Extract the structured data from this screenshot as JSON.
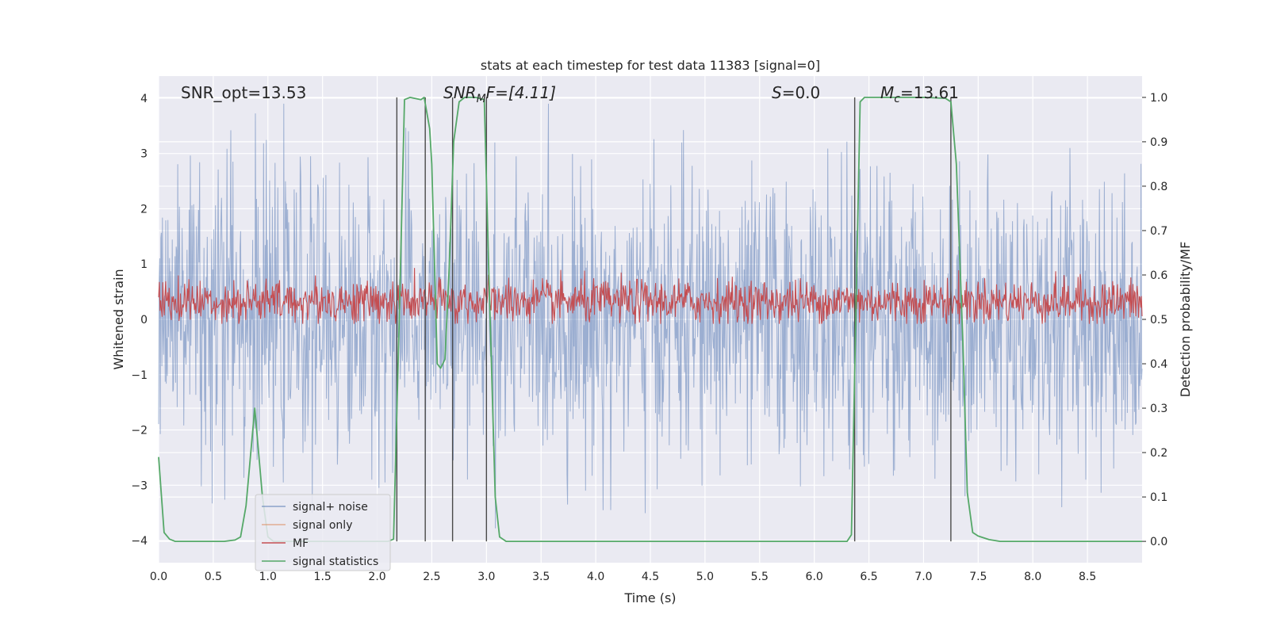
{
  "chart_data": {
    "type": "line",
    "title": "stats at each timestep for test data 11383 [signal=0]",
    "xlabel": "Time (s)",
    "ylabel_left": "Whitened strain",
    "ylabel_right": "Detection probability/MF",
    "xlim": [
      0.0,
      9.0
    ],
    "ylim_left": [
      -4.4,
      4.4
    ],
    "ylim_right": [
      -0.048,
      1.048
    ],
    "x_ticks": [
      "0.0",
      "0.5",
      "1.0",
      "1.5",
      "2.0",
      "2.5",
      "3.0",
      "3.5",
      "4.0",
      "4.5",
      "5.0",
      "5.5",
      "6.0",
      "6.5",
      "7.0",
      "7.5",
      "8.0",
      "8.5"
    ],
    "y_ticks_left": [
      "4",
      "3",
      "2",
      "1",
      "0",
      "−1",
      "−2",
      "−3",
      "−4"
    ],
    "y_ticks_right": [
      "1.0",
      "0.9",
      "0.8",
      "0.7",
      "0.6",
      "0.5",
      "0.4",
      "0.3",
      "0.2",
      "0.1",
      "0.0"
    ],
    "grid": true,
    "legend_position": "lower-left",
    "annotations": {
      "snr_opt": "SNR_opt=13.53",
      "snr_mf_sym": "SNR",
      "snr_mf_sub": "M",
      "snr_mf_rest": "F=[4.11]",
      "s_sym": "S",
      "s_rest": "=0.0",
      "mc_sym": "M",
      "mc_sub": "c",
      "mc_rest": "=13.61"
    },
    "vlines_x": [
      2.18,
      2.44,
      2.69,
      3.0,
      6.37,
      7.25
    ],
    "series": [
      {
        "name": "signal+ noise",
        "color": "#4c72b0",
        "alpha": 0.5,
        "axis": "left",
        "kind": "noise",
        "approx_range": [
          -3.9,
          3.9
        ]
      },
      {
        "name": "signal only",
        "color": "#dd8452",
        "axis": "left",
        "values": []
      },
      {
        "name": "MF",
        "color": "#c44e52",
        "axis": "right",
        "kind": "noise",
        "approx_range": [
          0.49,
          0.62
        ]
      },
      {
        "name": "signal statistics",
        "color": "#55a868",
        "axis": "right",
        "x": [
          0.0,
          0.05,
          0.1,
          0.15,
          0.2,
          0.4,
          0.6,
          0.7,
          0.75,
          0.8,
          0.88,
          0.95,
          1.0,
          1.05,
          1.2,
          1.5,
          2.0,
          2.1,
          2.15,
          2.2,
          2.25,
          2.3,
          2.4,
          2.43,
          2.48,
          2.5,
          2.55,
          2.58,
          2.62,
          2.66,
          2.7,
          2.75,
          2.8,
          2.9,
          2.98,
          3.02,
          3.08,
          3.12,
          3.18,
          3.5,
          4.5,
          5.5,
          6.3,
          6.34,
          6.38,
          6.42,
          6.46,
          6.6,
          7.0,
          7.2,
          7.25,
          7.3,
          7.36,
          7.4,
          7.45,
          7.5,
          7.6,
          7.7,
          8.0,
          8.5,
          9.0
        ],
        "values": [
          0.19,
          0.02,
          0.005,
          0.0,
          0.0,
          0.0,
          0.0,
          0.003,
          0.01,
          0.08,
          0.3,
          0.1,
          0.01,
          0.0,
          0.0,
          0.0,
          0.0,
          0.0,
          0.005,
          0.48,
          0.995,
          1.0,
          0.995,
          1.0,
          0.93,
          0.85,
          0.4,
          0.39,
          0.41,
          0.62,
          0.9,
          0.99,
          1.0,
          1.0,
          0.995,
          0.62,
          0.1,
          0.01,
          0.0,
          0.0,
          0.0,
          0.0,
          0.0,
          0.015,
          0.5,
          0.99,
          1.0,
          1.0,
          1.0,
          0.998,
          0.99,
          0.85,
          0.45,
          0.11,
          0.02,
          0.012,
          0.004,
          0.0,
          0.0,
          0.0,
          0.0
        ]
      }
    ]
  }
}
